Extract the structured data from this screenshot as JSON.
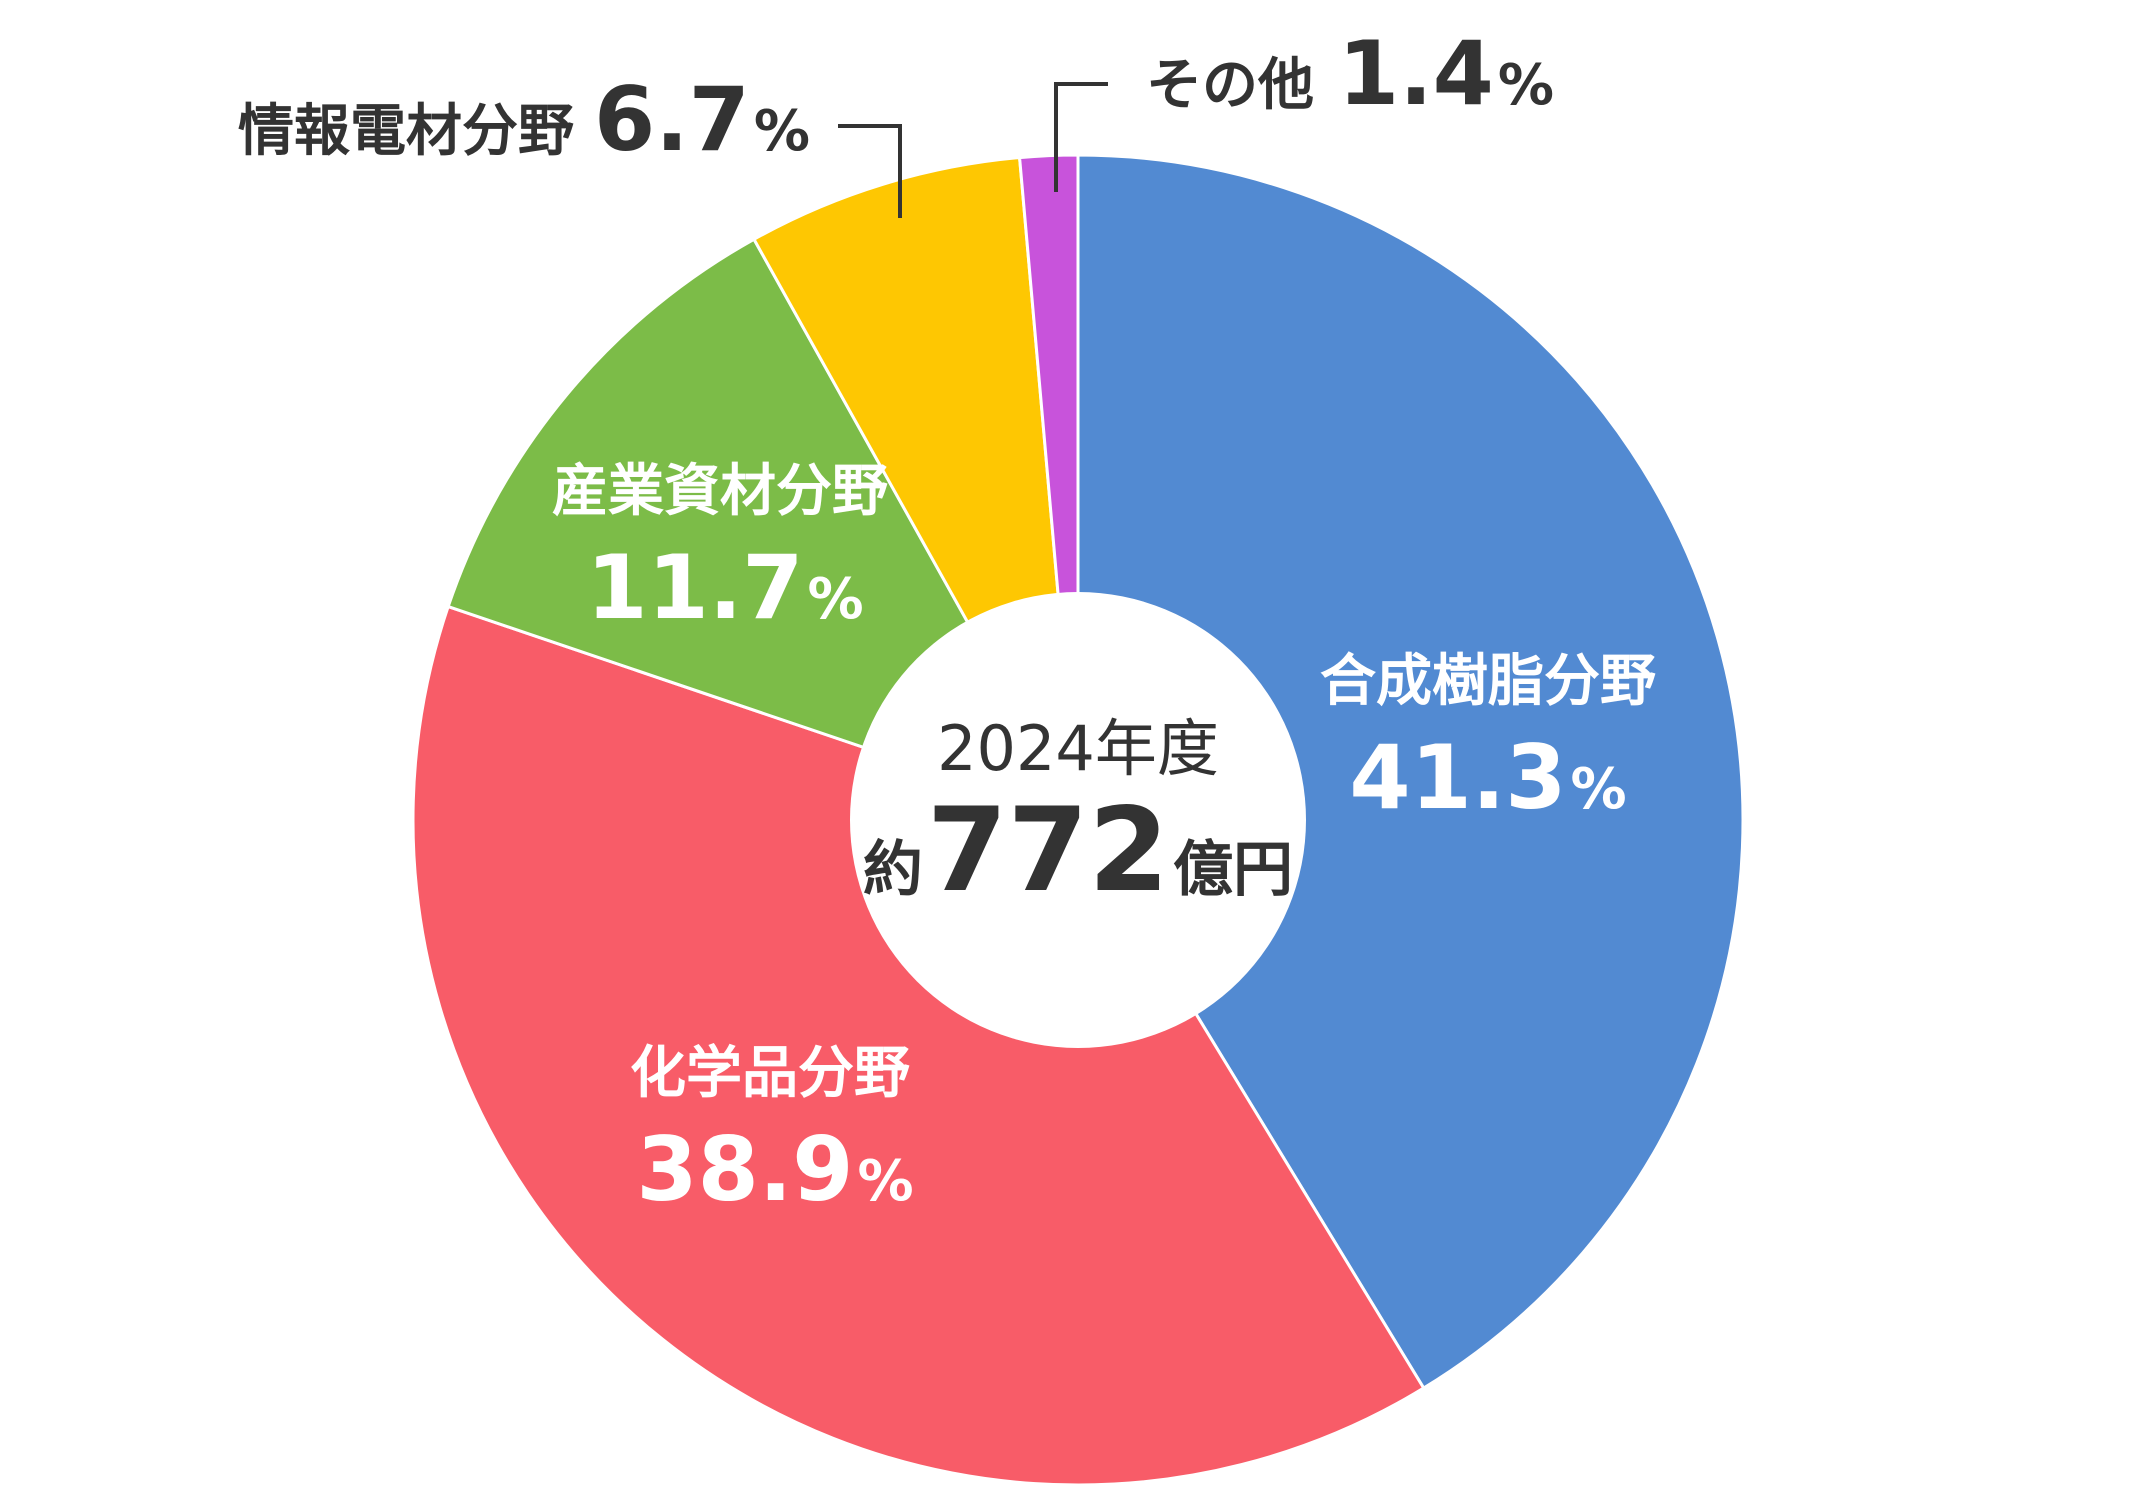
{
  "chart_data": {
    "type": "pie",
    "donut": true,
    "categories": [
      "合成樹脂分野",
      "化学品分野",
      "産業資材分野",
      "情報電材分野",
      "その他"
    ],
    "values": [
      41.3,
      38.9,
      11.7,
      6.7,
      1.4
    ],
    "percent_labels": [
      "41.3",
      "38.9",
      "11.7",
      "6.7",
      "1.4"
    ],
    "unit": "%",
    "colors": [
      "#528ad2",
      "#f85c68",
      "#7cbc48",
      "#fec702",
      "#c853db"
    ],
    "start_angle_deg": 0,
    "direction": "clockwise",
    "center": {
      "year_label": "2024年度",
      "prefix": "約",
      "total": "772",
      "suffix": "億円"
    }
  }
}
